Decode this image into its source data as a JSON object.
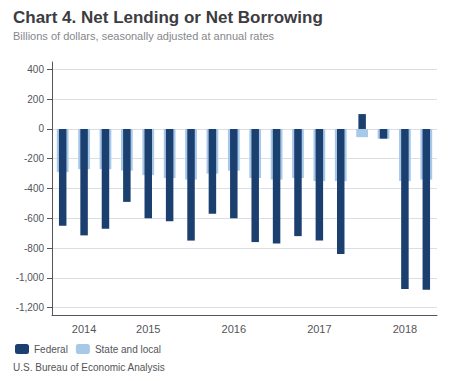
{
  "chart_data": {
    "type": "bar",
    "title": "Chart 4. Net Lending or Net Borrowing",
    "subtitle": "Billions of dollars, seasonally adjusted at annual rates",
    "footnote": "U.S. Bureau of Economic Analysis",
    "categories": [
      null,
      "2014",
      null,
      null,
      "2015",
      null,
      null,
      null,
      "2016",
      null,
      null,
      null,
      "2017",
      null,
      null,
      null,
      "2018",
      null
    ],
    "series": [
      {
        "name": "State and local",
        "color": "#a8c8e8",
        "values": [
          -290,
          -270,
          -270,
          -280,
          -310,
          -330,
          -340,
          -300,
          -280,
          -330,
          -340,
          -330,
          -350,
          -350,
          -55,
          -65,
          -350,
          -340
        ]
      },
      {
        "name": "Federal",
        "color": "#1b3f6e",
        "values": [
          -650,
          -715,
          -670,
          -490,
          -600,
          -620,
          -750,
          -570,
          -600,
          -760,
          -770,
          -720,
          -750,
          -840,
          100,
          -65,
          -1075,
          -1080
        ]
      }
    ],
    "ylim": [
      -1250,
      450
    ],
    "yticks": [
      {
        "value": -1200,
        "label": "-1,200"
      },
      {
        "value": -1000,
        "label": "-1,000"
      },
      -800,
      -600,
      -400,
      -200,
      0,
      200,
      400
    ],
    "grid": true,
    "legend": "lower left"
  }
}
